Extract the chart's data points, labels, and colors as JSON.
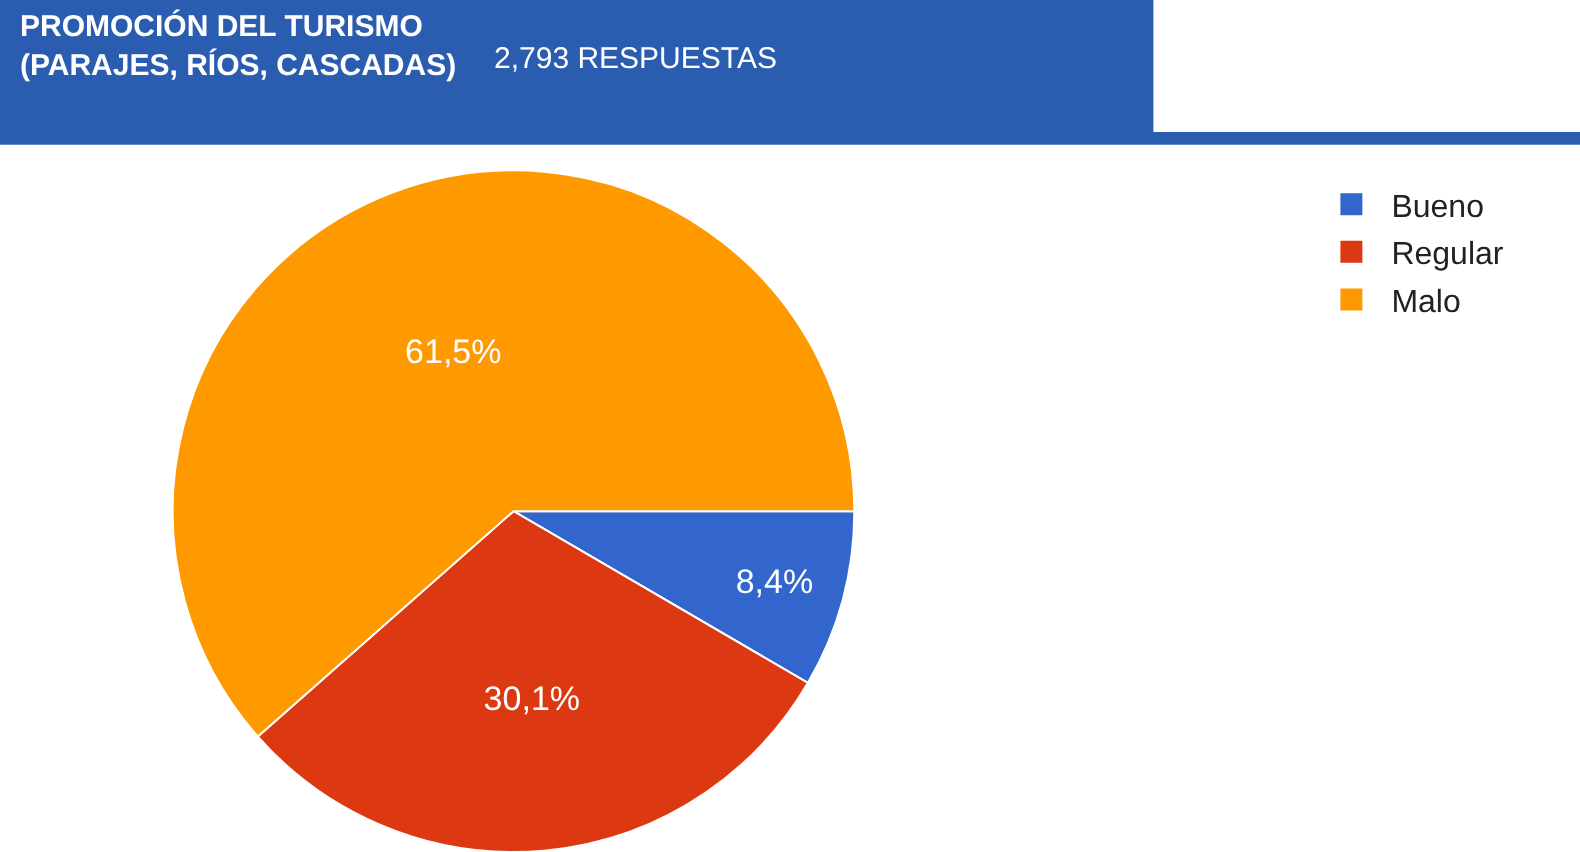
{
  "chart_data": {
    "type": "pie",
    "title": "PROMOCIÓN DEL TURISMO (PARAJES, RÍOS, CASCADAS)",
    "subtitle": "2,793 RESPUESTAS",
    "categories": [
      "Bueno",
      "Regular",
      "Malo"
    ],
    "values": [
      8.4,
      30.1,
      61.5
    ],
    "value_labels": [
      "8,4%",
      "30,1%",
      "61,5%"
    ],
    "colors": [
      "#3366cc",
      "#dc3912",
      "#ff9900"
    ],
    "legend": "top right"
  }
}
